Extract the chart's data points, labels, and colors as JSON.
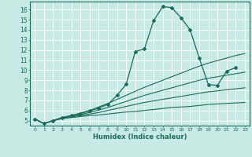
{
  "xlabel": "Humidex (Indice chaleur)",
  "xlim": [
    -0.5,
    23.5
  ],
  "ylim": [
    4.5,
    16.8
  ],
  "xticks": [
    0,
    1,
    2,
    3,
    4,
    5,
    6,
    7,
    8,
    9,
    10,
    11,
    12,
    13,
    14,
    15,
    16,
    17,
    18,
    19,
    20,
    21,
    22,
    23
  ],
  "yticks": [
    5,
    6,
    7,
    8,
    9,
    10,
    11,
    12,
    13,
    14,
    15,
    16
  ],
  "bg_color": "#c8eae4",
  "line_color": "#1a6b5a",
  "grid_color": "#ffffff",
  "lines": [
    {
      "x": [
        0,
        1,
        2,
        3,
        4,
        5,
        6,
        7,
        8,
        9,
        10,
        11,
        12,
        13,
        14,
        15,
        16,
        17,
        18,
        19,
        20,
        21,
        22,
        23
      ],
      "y": [
        5.15,
        4.7,
        5.0,
        5.2,
        5.3,
        5.4,
        5.5,
        5.55,
        5.65,
        5.75,
        5.85,
        5.9,
        6.0,
        6.1,
        6.2,
        6.3,
        6.35,
        6.4,
        6.5,
        6.6,
        6.65,
        6.7,
        6.75,
        6.8
      ],
      "marker": false
    },
    {
      "x": [
        0,
        1,
        2,
        3,
        4,
        5,
        6,
        7,
        8,
        9,
        10,
        11,
        12,
        13,
        14,
        15,
        16,
        17,
        18,
        19,
        20,
        21,
        22,
        23
      ],
      "y": [
        5.15,
        4.7,
        5.0,
        5.2,
        5.35,
        5.5,
        5.65,
        5.8,
        6.0,
        6.2,
        6.4,
        6.6,
        6.8,
        6.95,
        7.1,
        7.25,
        7.4,
        7.55,
        7.7,
        7.85,
        7.95,
        8.05,
        8.15,
        8.25
      ],
      "marker": false
    },
    {
      "x": [
        0,
        1,
        2,
        3,
        4,
        5,
        6,
        7,
        8,
        9,
        10,
        11,
        12,
        13,
        14,
        15,
        16,
        17,
        18,
        19,
        20,
        21,
        22,
        23
      ],
      "y": [
        5.15,
        4.7,
        5.0,
        5.25,
        5.4,
        5.6,
        5.8,
        6.05,
        6.3,
        6.6,
        6.9,
        7.2,
        7.5,
        7.75,
        8.0,
        8.25,
        8.5,
        8.75,
        9.0,
        9.2,
        9.35,
        9.5,
        9.65,
        9.8
      ],
      "marker": false
    },
    {
      "x": [
        0,
        1,
        2,
        3,
        4,
        5,
        6,
        7,
        8,
        9,
        10,
        11,
        12,
        13,
        14,
        15,
        16,
        17,
        18,
        19,
        20,
        21,
        22,
        23
      ],
      "y": [
        5.15,
        4.7,
        5.0,
        5.3,
        5.5,
        5.75,
        6.0,
        6.35,
        6.7,
        7.1,
        7.5,
        7.9,
        8.3,
        8.65,
        9.0,
        9.35,
        9.7,
        10.05,
        10.4,
        10.7,
        10.95,
        11.2,
        11.45,
        11.65
      ],
      "marker": false
    },
    {
      "x": [
        0,
        1,
        2,
        3,
        4,
        5,
        6,
        7,
        8,
        9,
        10,
        11,
        12,
        13,
        14,
        15,
        16,
        17,
        18,
        19,
        20,
        21,
        22
      ],
      "y": [
        5.15,
        4.7,
        5.0,
        5.3,
        5.5,
        5.7,
        5.95,
        6.25,
        6.6,
        7.5,
        8.6,
        11.85,
        12.1,
        14.9,
        16.3,
        16.2,
        15.2,
        14.0,
        11.2,
        8.55,
        8.5,
        9.9,
        10.25
      ],
      "marker": true
    }
  ]
}
